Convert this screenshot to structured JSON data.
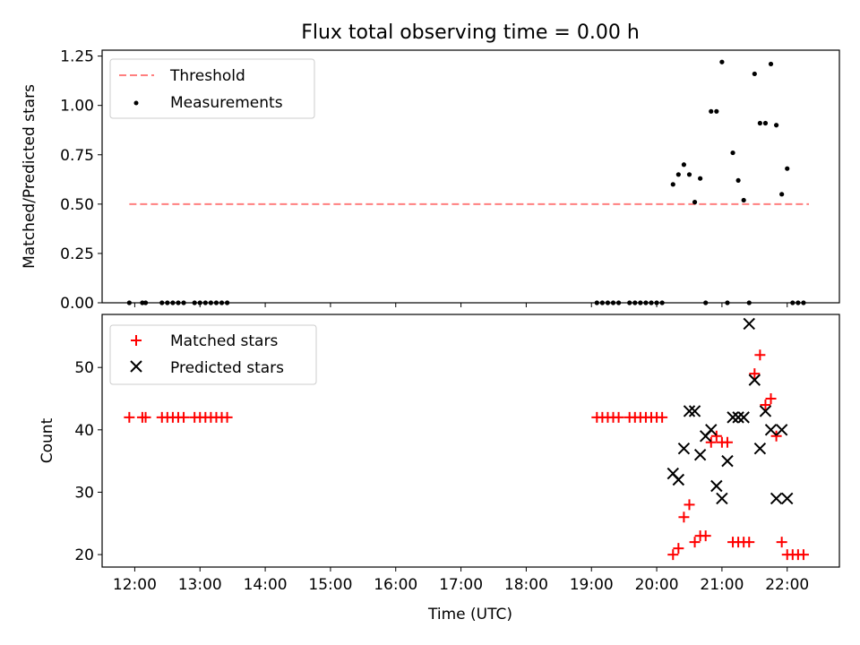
{
  "title": "Flux total observing time = 0.00 h",
  "xlabel": "Time (UTC)",
  "x_ticks": [
    "12:00",
    "13:00",
    "14:00",
    "15:00",
    "16:00",
    "17:00",
    "18:00",
    "19:00",
    "20:00",
    "21:00",
    "22:00"
  ],
  "colors": {
    "threshold": "#ff7f7f",
    "matched": "#ff0000",
    "predicted": "#000000",
    "measurement": "#000000"
  },
  "chart_data": [
    {
      "type": "scatter",
      "ylabel": "Matched/Predicted stars",
      "ylim": [
        0,
        1.28
      ],
      "y_ticks": [
        "0.00",
        "0.25",
        "0.50",
        "0.75",
        "1.00",
        "1.25"
      ],
      "legend_placement": "top-left",
      "series": [
        {
          "name": "Threshold",
          "kind": "line",
          "style": "dashed",
          "x": [
            "11:55",
            "22:20"
          ],
          "values": [
            0.5,
            0.5
          ]
        },
        {
          "name": "Measurements",
          "kind": "scatter",
          "marker": "dot",
          "x": [
            "11:55",
            "12:07",
            "12:10",
            "12:25",
            "12:30",
            "12:35",
            "12:40",
            "12:45",
            "12:55",
            "13:00",
            "13:05",
            "13:10",
            "13:15",
            "13:20",
            "13:25",
            "19:05",
            "19:10",
            "19:15",
            "19:20",
            "19:25",
            "19:35",
            "19:40",
            "19:45",
            "19:50",
            "19:55",
            "20:00",
            "20:05",
            "20:15",
            "20:20",
            "20:25",
            "20:30",
            "20:35",
            "20:40",
            "20:45",
            "20:50",
            "20:55",
            "21:00",
            "21:05",
            "21:10",
            "21:15",
            "21:20",
            "21:25",
            "21:30",
            "21:35",
            "21:40",
            "21:45",
            "21:50",
            "21:55",
            "22:00",
            "22:05",
            "22:10",
            "22:15"
          ],
          "values": [
            0,
            0,
            0,
            0,
            0,
            0,
            0,
            0,
            0,
            0,
            0,
            0,
            0,
            0,
            0,
            0,
            0,
            0,
            0,
            0,
            0,
            0,
            0,
            0,
            0,
            0,
            0,
            0.6,
            0.65,
            0.7,
            0.65,
            0.51,
            0.63,
            0,
            0.97,
            0.97,
            1.22,
            0,
            0.76,
            0.62,
            0.52,
            0,
            1.16,
            0.91,
            0.91,
            1.21,
            0.9,
            0.55,
            0.68,
            0,
            0,
            0
          ]
        }
      ]
    },
    {
      "type": "scatter",
      "ylabel": "Count",
      "ylim": [
        18,
        58.5
      ],
      "y_ticks": [
        "20",
        "30",
        "40",
        "50"
      ],
      "legend_placement": "top-left",
      "series": [
        {
          "name": "Matched stars",
          "kind": "scatter",
          "marker": "plus",
          "x": [
            "11:55",
            "12:07",
            "12:10",
            "12:25",
            "12:30",
            "12:35",
            "12:40",
            "12:45",
            "12:55",
            "13:00",
            "13:05",
            "13:10",
            "13:15",
            "13:20",
            "13:25",
            "19:05",
            "19:10",
            "19:15",
            "19:20",
            "19:25",
            "19:35",
            "19:40",
            "19:45",
            "19:50",
            "19:55",
            "20:00",
            "20:05",
            "20:15",
            "20:20",
            "20:25",
            "20:30",
            "20:35",
            "20:40",
            "20:45",
            "20:50",
            "20:55",
            "21:00",
            "21:05",
            "21:10",
            "21:15",
            "21:20",
            "21:25",
            "21:30",
            "21:35",
            "21:40",
            "21:45",
            "21:50",
            "21:55",
            "22:00",
            "22:05",
            "22:10",
            "22:15"
          ],
          "values": [
            42,
            42,
            42,
            42,
            42,
            42,
            42,
            42,
            42,
            42,
            42,
            42,
            42,
            42,
            42,
            42,
            42,
            42,
            42,
            42,
            42,
            42,
            42,
            42,
            42,
            42,
            42,
            20,
            21,
            26,
            28,
            22,
            23,
            23,
            38,
            39,
            38,
            38,
            22,
            22,
            22,
            22,
            49,
            52,
            44,
            45,
            39,
            22,
            20,
            20,
            20,
            20
          ]
        },
        {
          "name": "Predicted stars",
          "kind": "scatter",
          "marker": "x",
          "x": [
            "20:15",
            "20:20",
            "20:25",
            "20:30",
            "20:35",
            "20:40",
            "20:45",
            "20:50",
            "20:55",
            "21:00",
            "21:05",
            "21:10",
            "21:15",
            "21:20",
            "21:25",
            "21:30",
            "21:35",
            "21:40",
            "21:45",
            "21:50",
            "21:55",
            "22:00"
          ],
          "values": [
            33,
            32,
            37,
            43,
            43,
            36,
            39,
            40,
            31,
            29,
            35,
            42,
            42,
            42,
            57,
            48,
            37,
            43,
            40,
            29,
            40,
            29
          ]
        }
      ]
    }
  ]
}
